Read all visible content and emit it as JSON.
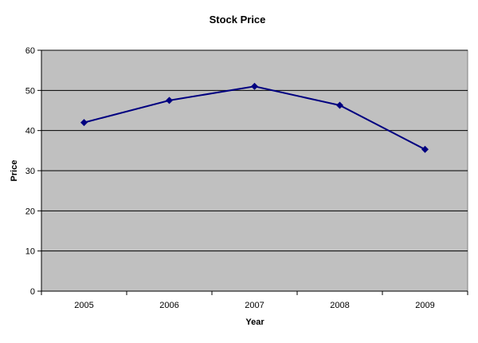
{
  "chart_data": {
    "type": "line",
    "title": "Stock Price",
    "xlabel": "Year",
    "ylabel": "Price",
    "categories": [
      "2005",
      "2006",
      "2007",
      "2008",
      "2009"
    ],
    "series": [
      {
        "name": "",
        "values": [
          42,
          47.5,
          51,
          46.3,
          35.3
        ]
      }
    ],
    "ylim": [
      0,
      60
    ],
    "yticks": [
      0,
      10,
      20,
      30,
      40,
      50,
      60
    ],
    "grid": true,
    "legend": "none",
    "colors": {
      "plot_background": "#c0c0c0",
      "series_line": "#000080",
      "gridline": "#000000"
    }
  }
}
